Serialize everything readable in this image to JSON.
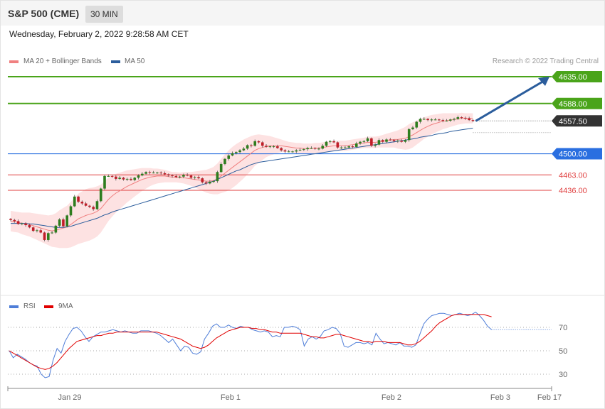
{
  "header": {
    "symbol": "S&P 500 (CME)",
    "interval": "30 MIN"
  },
  "timestamp": "Wednesday, February 2, 2022 9:28:58 AM CET",
  "legend_main": [
    {
      "label": "MA 20 + Bollinger Bands",
      "color": "#f08080"
    },
    {
      "label": "MA 50",
      "color": "#2b5d9c"
    }
  ],
  "credit": "Research © 2022 Trading Central",
  "legend_rsi": [
    {
      "label": "RSI",
      "color": "#4f7ed8"
    },
    {
      "label": "9MA",
      "color": "#e00000"
    }
  ],
  "chart_data": [
    {
      "type": "candlestick",
      "ylim": [
        4348,
        4655
      ],
      "levels": [
        {
          "label": "4635.00",
          "value": 4635.0,
          "kind": "target",
          "color": "#4aa41a"
        },
        {
          "label": "4588.00",
          "value": 4588.0,
          "kind": "target",
          "color": "#4aa41a"
        },
        {
          "label": "4557.50",
          "value": 4557.5,
          "kind": "last",
          "color": "#333333"
        },
        {
          "label": "4500.00",
          "value": 4500.0,
          "kind": "pivot",
          "color": "#2a6fe0"
        },
        {
          "label": "4463.00",
          "value": 4463.0,
          "kind": "support",
          "color": "#e04040"
        },
        {
          "label": "4436.00",
          "value": 4436.0,
          "kind": "support",
          "color": "#e04040"
        }
      ],
      "close": [
        4384,
        4382,
        4377,
        4378,
        4375,
        4371,
        4365,
        4366,
        4362,
        4349,
        4361,
        4362,
        4374,
        4385,
        4373,
        4392,
        4408,
        4425,
        4416,
        4413,
        4409,
        4407,
        4403,
        4417,
        4439,
        4461,
        4461,
        4460,
        4456,
        4458,
        4455,
        4456,
        4454,
        4458,
        4462,
        4465,
        4468,
        4467,
        4467,
        4467,
        4466,
        4464,
        4462,
        4461,
        4459,
        4460,
        4463,
        4462,
        4458,
        4459,
        4457,
        4450,
        4448,
        4451,
        4452,
        4468,
        4482,
        4491,
        4497,
        4501,
        4503,
        4506,
        4509,
        4515,
        4514,
        4522,
        4520,
        4514,
        4512,
        4513,
        4513,
        4510,
        4506,
        4504,
        4504,
        4504,
        4506,
        4507,
        4508,
        4510,
        4510,
        4509,
        4509,
        4514,
        4521,
        4522,
        4520,
        4511,
        4511,
        4511,
        4513,
        4512,
        4518,
        4521,
        4522,
        4527,
        4514,
        4516,
        4524,
        4521,
        4525,
        4524,
        4522,
        4523,
        4521,
        4524,
        4543,
        4546,
        4556,
        4561,
        4561,
        4559,
        4560,
        4560,
        4559,
        4558,
        4558,
        4560,
        4561,
        4564,
        4563,
        4562,
        4559,
        4557.5
      ],
      "ma20": [
        4382,
        4381,
        4380,
        4378,
        4377,
        4376,
        4374,
        4372,
        4370,
        4368,
        4366,
        4365,
        4366,
        4368,
        4370,
        4372,
        4376,
        4381,
        4386,
        4389,
        4392,
        4394,
        4396,
        4399,
        4404,
        4412,
        4420,
        4426,
        4431,
        4435,
        4439,
        4443,
        4446,
        4449,
        4452,
        4455,
        4457,
        4459,
        4460,
        4461,
        4461,
        4461,
        4460,
        4459,
        4459,
        4458,
        4458,
        4457,
        4456,
        4455,
        4454,
        4453,
        4452,
        4452,
        4453,
        4456,
        4461,
        4466,
        4471,
        4476,
        4481,
        4486,
        4491,
        4496,
        4501,
        4506,
        4509,
        4511,
        4513,
        4514,
        4514,
        4514,
        4514,
        4513,
        4512,
        4511,
        4510,
        4510,
        4509,
        4509,
        4509,
        4510,
        4510,
        4511,
        4512,
        4513,
        4514,
        4514,
        4514,
        4514,
        4515,
        4516,
        4517,
        4518,
        4519,
        4520,
        4520,
        4520,
        4521,
        4522,
        4523,
        4524,
        4525,
        4525,
        4526,
        4527,
        4530,
        4533,
        4537,
        4541,
        4545,
        4548,
        4551,
        4553,
        4555,
        4557,
        4558,
        4559,
        4560,
        4561,
        4562,
        4562,
        4562,
        4562
      ],
      "ma50": [
        4378,
        4378,
        4378,
        4378,
        4378,
        4377,
        4377,
        4376,
        4375,
        4374,
        4373,
        4372,
        4371,
        4371,
        4371,
        4372,
        4373,
        4375,
        4377,
        4379,
        4381,
        4383,
        4385,
        4387,
        4390,
        4393,
        4395,
        4398,
        4400,
        4402,
        4404,
        4406,
        4408,
        4410,
        4412,
        4414,
        4416,
        4418,
        4420,
        4422,
        4424,
        4426,
        4428,
        4430,
        4432,
        4434,
        4436,
        4438,
        4440,
        4442,
        4444,
        4446,
        4448,
        4450,
        4452,
        4455,
        4458,
        4461,
        4464,
        4467,
        4470,
        4472,
        4475,
        4478,
        4481,
        4483,
        4485,
        4486,
        4487,
        4488,
        4489,
        4490,
        4491,
        4492,
        4493,
        4494,
        4495,
        4496,
        4497,
        4498,
        4499,
        4500,
        4501,
        4502,
        4503,
        4504,
        4505,
        4506,
        4507,
        4508,
        4509,
        4510,
        4511,
        4512,
        4513,
        4514,
        4515,
        4516,
        4517,
        4518,
        4519,
        4520,
        4521,
        4522,
        4523,
        4524,
        4525,
        4526,
        4527,
        4529,
        4530,
        4531,
        4532,
        4534,
        4535,
        4536,
        4537,
        4539,
        4540,
        4541,
        4542,
        4543,
        4544,
        4545
      ],
      "bollinger_width": [
        18,
        18,
        18,
        19,
        20,
        21,
        22,
        23,
        24,
        25,
        26,
        28,
        30,
        33,
        35,
        37,
        40,
        42,
        44,
        45,
        46,
        46,
        45,
        44,
        42,
        40,
        38,
        36,
        34,
        32,
        30,
        28,
        26,
        24,
        22,
        20,
        18,
        16,
        14,
        13,
        12,
        11,
        10,
        9,
        9,
        9,
        10,
        11,
        12,
        14,
        16,
        18,
        20,
        22,
        24,
        27,
        30,
        33,
        35,
        36,
        36,
        35,
        34,
        32,
        30,
        27,
        25,
        22,
        19,
        17,
        15,
        13,
        11,
        10,
        9,
        9,
        9,
        9,
        9,
        9,
        9,
        9,
        9,
        9,
        9,
        9,
        9,
        9,
        9,
        9,
        9,
        9,
        9,
        9,
        9,
        10,
        10,
        10,
        10,
        11,
        12,
        13,
        14,
        16,
        18,
        20,
        22,
        22,
        21,
        20,
        19,
        18,
        17,
        16,
        15,
        14,
        13,
        12,
        11,
        10,
        10,
        9,
        9,
        9
      ],
      "forecast_arrow": {
        "from": 4557.5,
        "to": 4635.0
      },
      "dashed_projection": [
        4557.5,
        4537
      ]
    },
    {
      "type": "line",
      "ylim": [
        20,
        85
      ],
      "y_ticks": [
        "70",
        "50",
        "30"
      ],
      "x_ticks": [
        "Jan 29",
        "Feb 1",
        "Feb 2",
        "Feb 3",
        "Feb 17"
      ],
      "series": [
        {
          "name": "RSI",
          "values": [
            50,
            44,
            47,
            45,
            43,
            40,
            38,
            37,
            30,
            27,
            28,
            42,
            52,
            48,
            58,
            64,
            69,
            70,
            67,
            62,
            58,
            62,
            64,
            66,
            66,
            67,
            68,
            67,
            66,
            67,
            66,
            65,
            65,
            67,
            67,
            67,
            66,
            65,
            63,
            60,
            57,
            60,
            55,
            50,
            54,
            53,
            48,
            47,
            49,
            60,
            65,
            71,
            73,
            70,
            70,
            72,
            70,
            69,
            71,
            70,
            70,
            68,
            67,
            66,
            67,
            66,
            62,
            63,
            62,
            70,
            70,
            71,
            70,
            68,
            54,
            60,
            62,
            60,
            62,
            67,
            68,
            70,
            69,
            65,
            54,
            53,
            55,
            57,
            57,
            56,
            57,
            55,
            65,
            60,
            56,
            57,
            56,
            55,
            57,
            54,
            54,
            53,
            55,
            64,
            73,
            77,
            80,
            81,
            82,
            82,
            81,
            80,
            81,
            82,
            81,
            80,
            81,
            83,
            80,
            76,
            71,
            68
          ],
          "color": "#4f7ed8"
        },
        {
          "name": "9MA",
          "values": [
            50,
            48,
            46,
            44,
            42,
            40,
            38,
            36,
            35,
            34,
            35,
            37,
            40,
            44,
            48,
            52,
            55,
            58,
            59,
            60,
            61,
            62,
            63,
            63,
            64,
            65,
            65,
            66,
            66,
            66,
            66,
            66,
            66,
            66,
            66,
            66,
            66,
            66,
            65,
            64,
            63,
            62,
            61,
            60,
            58,
            56,
            54,
            53,
            52,
            53,
            55,
            58,
            61,
            63,
            65,
            67,
            68,
            69,
            70,
            70,
            70,
            69,
            69,
            68,
            68,
            67,
            66,
            66,
            65,
            65,
            65,
            65,
            65,
            65,
            64,
            63,
            62,
            62,
            61,
            61,
            62,
            63,
            64,
            64,
            63,
            62,
            61,
            60,
            59,
            58,
            58,
            57,
            58,
            58,
            58,
            57,
            57,
            57,
            57,
            56,
            55,
            55,
            56,
            58,
            61,
            64,
            67,
            71,
            74,
            76,
            78,
            80,
            81,
            81,
            81,
            81,
            81,
            81,
            81,
            81,
            80,
            79
          ],
          "color": "#e00000"
        }
      ],
      "dashed_projection": 68
    }
  ]
}
